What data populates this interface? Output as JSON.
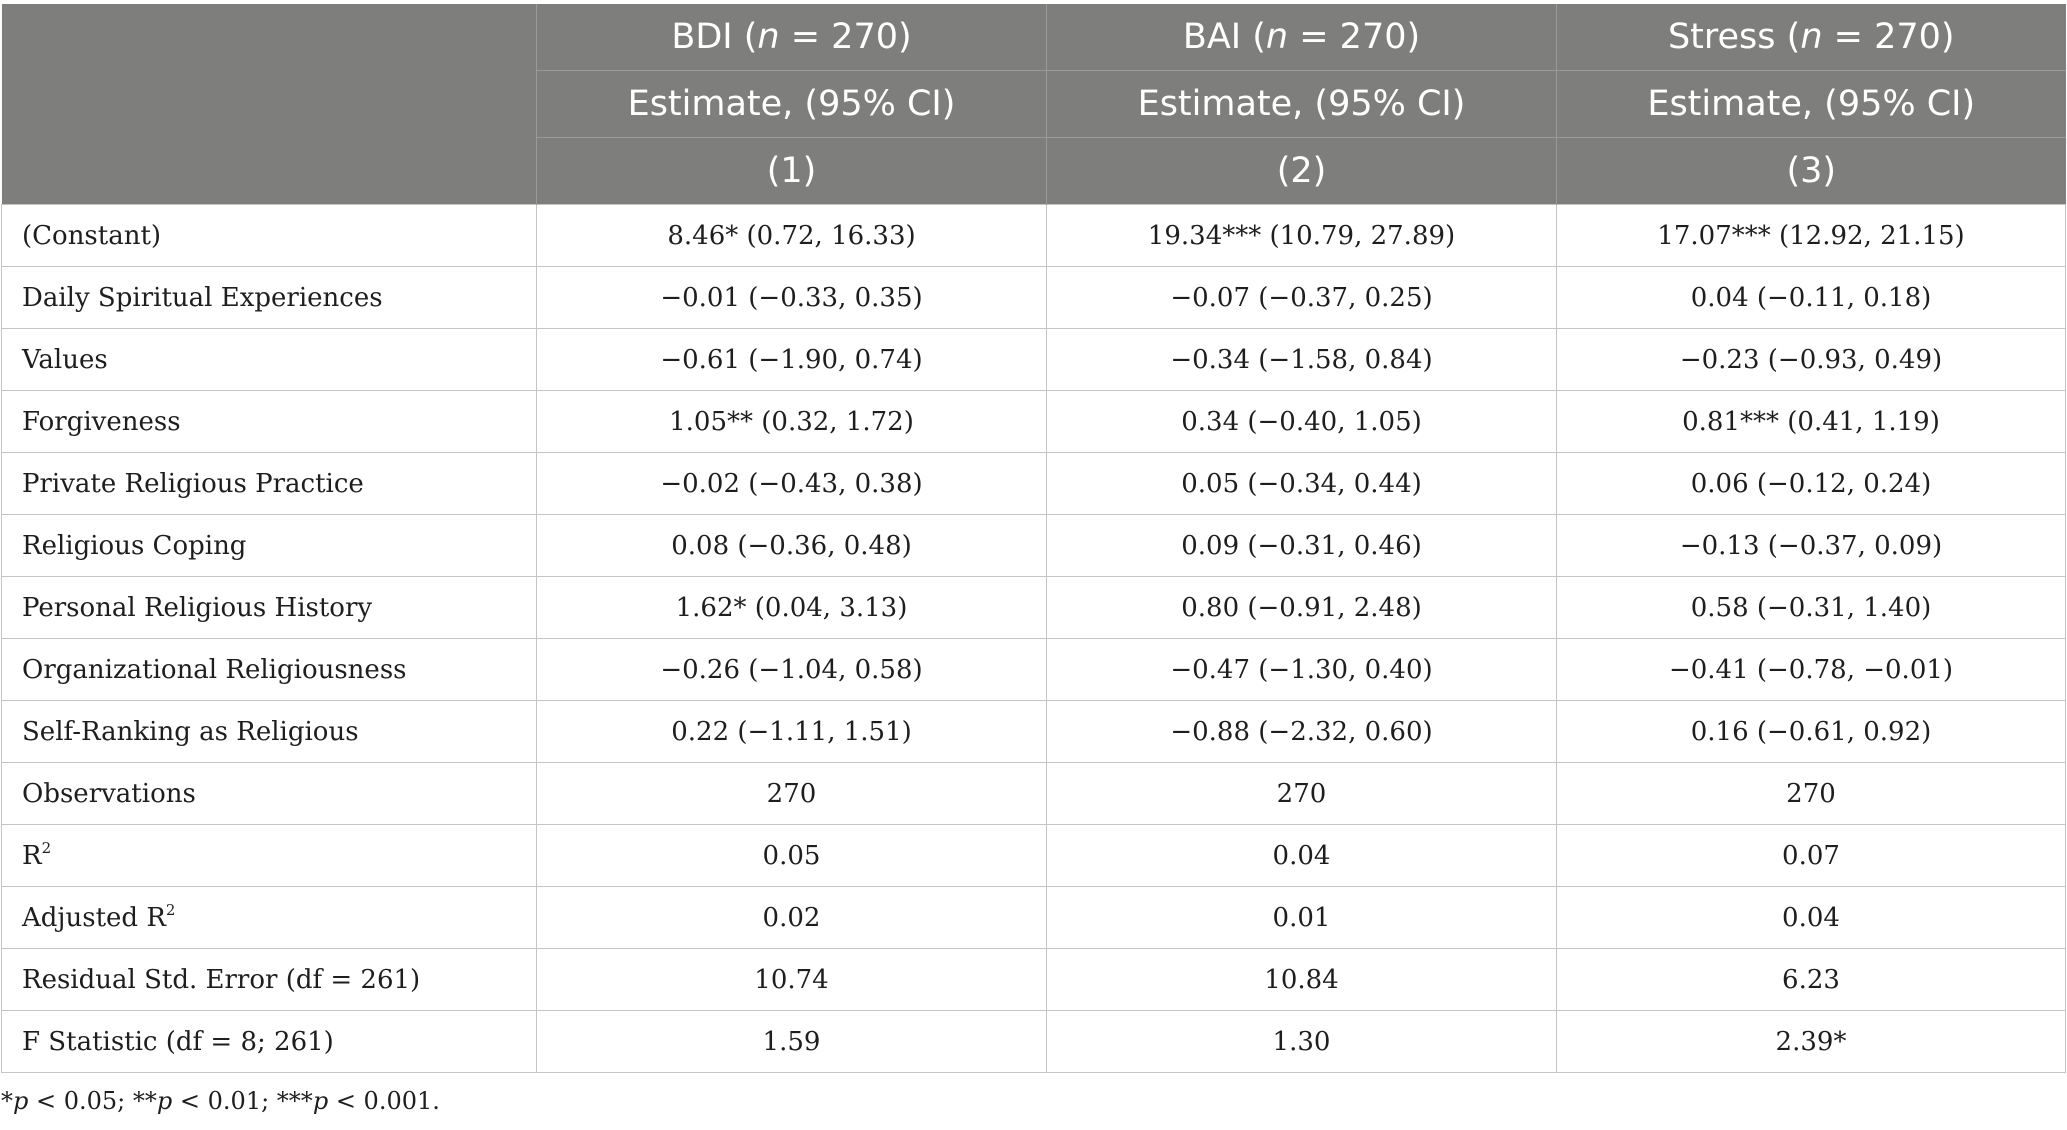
{
  "header": {
    "columns": [
      {
        "name": "BDI",
        "n_label": "n",
        "n_value": " = 270)",
        "estimate": "Estimate, (95% CI)",
        "model": "(1)"
      },
      {
        "name": "BAI",
        "n_label": "n",
        "n_value": " = 270)",
        "estimate": "Estimate, (95% CI)",
        "model": "(2)"
      },
      {
        "name": "Stress",
        "n_label": "n",
        "n_value": " = 270)",
        "estimate": "Estimate, (95% CI)",
        "model": "(3)"
      }
    ],
    "open_paren": " ("
  },
  "rows": [
    {
      "label": "(Constant)",
      "sup": "",
      "values": [
        "8.46* (0.72, 16.33)",
        "19.34*** (10.79, 27.89)",
        "17.07*** (12.92, 21.15)"
      ]
    },
    {
      "label": "Daily Spiritual Experiences",
      "sup": "",
      "values": [
        "−0.01 (−0.33, 0.35)",
        "−0.07 (−0.37, 0.25)",
        "0.04 (−0.11, 0.18)"
      ]
    },
    {
      "label": "Values",
      "sup": "",
      "values": [
        "−0.61 (−1.90, 0.74)",
        "−0.34 (−1.58, 0.84)",
        "−0.23 (−0.93, 0.49)"
      ]
    },
    {
      "label": "Forgiveness",
      "sup": "",
      "values": [
        "1.05** (0.32, 1.72)",
        "0.34 (−0.40, 1.05)",
        "0.81*** (0.41, 1.19)"
      ]
    },
    {
      "label": "Private Religious Practice",
      "sup": "",
      "values": [
        "−0.02 (−0.43, 0.38)",
        "0.05 (−0.34, 0.44)",
        "0.06 (−0.12, 0.24)"
      ]
    },
    {
      "label": "Religious Coping",
      "sup": "",
      "values": [
        "0.08 (−0.36, 0.48)",
        "0.09 (−0.31, 0.46)",
        "−0.13 (−0.37, 0.09)"
      ]
    },
    {
      "label": "Personal Religious History",
      "sup": "",
      "values": [
        "1.62* (0.04, 3.13)",
        "0.80 (−0.91, 2.48)",
        "0.58 (−0.31, 1.40)"
      ]
    },
    {
      "label": "Organizational Religiousness",
      "sup": "",
      "values": [
        "−0.26 (−1.04, 0.58)",
        "−0.47 (−1.30, 0.40)",
        "−0.41 (−0.78, −0.01)"
      ]
    },
    {
      "label": "Self-Ranking as Religious",
      "sup": "",
      "values": [
        "0.22 (−1.11, 1.51)",
        "−0.88 (−2.32, 0.60)",
        "0.16 (−0.61, 0.92)"
      ]
    },
    {
      "label": "Observations",
      "sup": "",
      "values": [
        "270",
        "270",
        "270"
      ]
    },
    {
      "label": "R",
      "sup": "2",
      "values": [
        "0.05",
        "0.04",
        "0.07"
      ]
    },
    {
      "label": "Adjusted R",
      "sup": "2",
      "values": [
        "0.02",
        "0.01",
        "0.04"
      ]
    },
    {
      "label": "Residual Std. Error (df = 261)",
      "sup": "",
      "values": [
        "10.74",
        "10.84",
        "6.23"
      ]
    },
    {
      "label": "F Statistic (df = 8; 261)",
      "sup": "",
      "values": [
        "1.59",
        "1.30",
        "2.39*"
      ]
    }
  ],
  "footnote": {
    "parts": [
      {
        "text": "*",
        "italic": false
      },
      {
        "text": "p",
        "italic": true
      },
      {
        "text": " < 0.05; **",
        "italic": false
      },
      {
        "text": "p",
        "italic": true
      },
      {
        "text": " < 0.01; ***",
        "italic": false
      },
      {
        "text": "p",
        "italic": true
      },
      {
        "text": " < 0.001.",
        "italic": false
      }
    ]
  }
}
